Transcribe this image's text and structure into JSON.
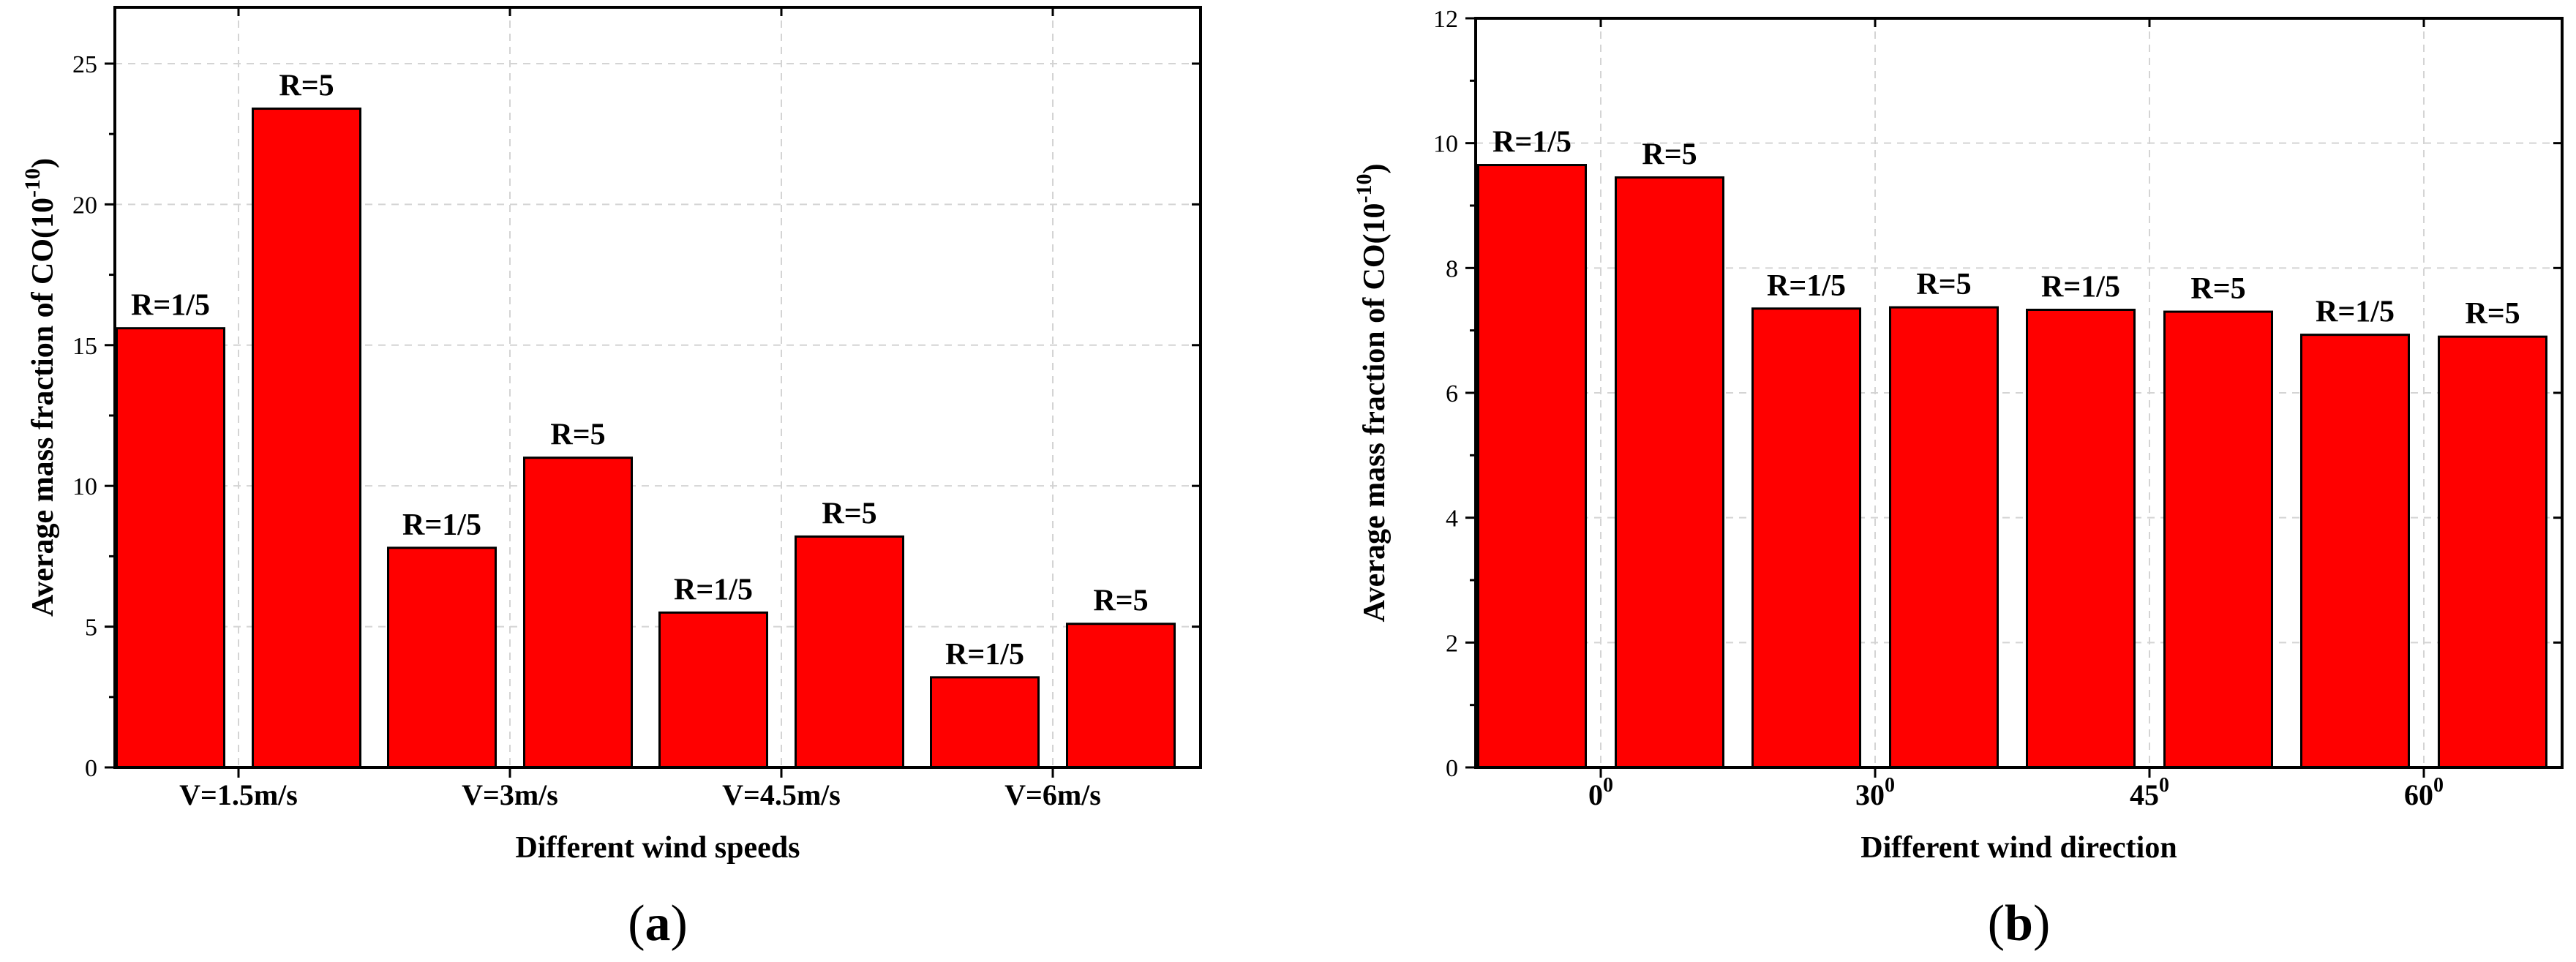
{
  "chart_data": [
    {
      "type": "bar",
      "panel_label": "a",
      "xlabel": "Different wind speeds",
      "ylabel_main": "Average mass fraction of CO(10",
      "ylabel_exp": "-10",
      "ylabel_end": ")",
      "ylim": [
        0,
        27
      ],
      "yticks": [
        0,
        5,
        10,
        15,
        20,
        25
      ],
      "categories": [
        {
          "label": "V=1.5m/s"
        },
        {
          "label": "V=3m/s"
        },
        {
          "label": "V=4.5m/s"
        },
        {
          "label": "V=6m/s"
        }
      ],
      "bars": [
        {
          "label": "R=1/5",
          "value": 15.6
        },
        {
          "label": "R=5",
          "value": 23.4
        },
        {
          "label": "R=1/5",
          "value": 7.8
        },
        {
          "label": "R=5",
          "value": 11.0
        },
        {
          "label": "R=1/5",
          "value": 5.5
        },
        {
          "label": "R=5",
          "value": 8.2
        },
        {
          "label": "R=1/5",
          "value": 3.2
        },
        {
          "label": "R=5",
          "value": 5.1
        }
      ],
      "colors": {
        "bar": "#ff0000"
      }
    },
    {
      "type": "bar",
      "panel_label": "b",
      "xlabel": "Different wind direction",
      "ylabel_main": "Average mass fraction of CO(10",
      "ylabel_exp": "-10",
      "ylabel_end": ")",
      "ylim": [
        0,
        12
      ],
      "yticks": [
        0,
        2,
        4,
        6,
        8,
        10,
        12
      ],
      "categories": [
        {
          "label": "0",
          "sup": "0"
        },
        {
          "label": "30",
          "sup": "0"
        },
        {
          "label": "45",
          "sup": "0"
        },
        {
          "label": "60",
          "sup": "0"
        }
      ],
      "bars": [
        {
          "label": "R=1/5",
          "value": 9.65
        },
        {
          "label": "R=5",
          "value": 9.45
        },
        {
          "label": "R=1/5",
          "value": 7.35
        },
        {
          "label": "R=5",
          "value": 7.37
        },
        {
          "label": "R=1/5",
          "value": 7.33
        },
        {
          "label": "R=5",
          "value": 7.3
        },
        {
          "label": "R=1/5",
          "value": 6.93
        },
        {
          "label": "R=5",
          "value": 6.9
        }
      ],
      "colors": {
        "bar": "#ff0000"
      }
    }
  ]
}
